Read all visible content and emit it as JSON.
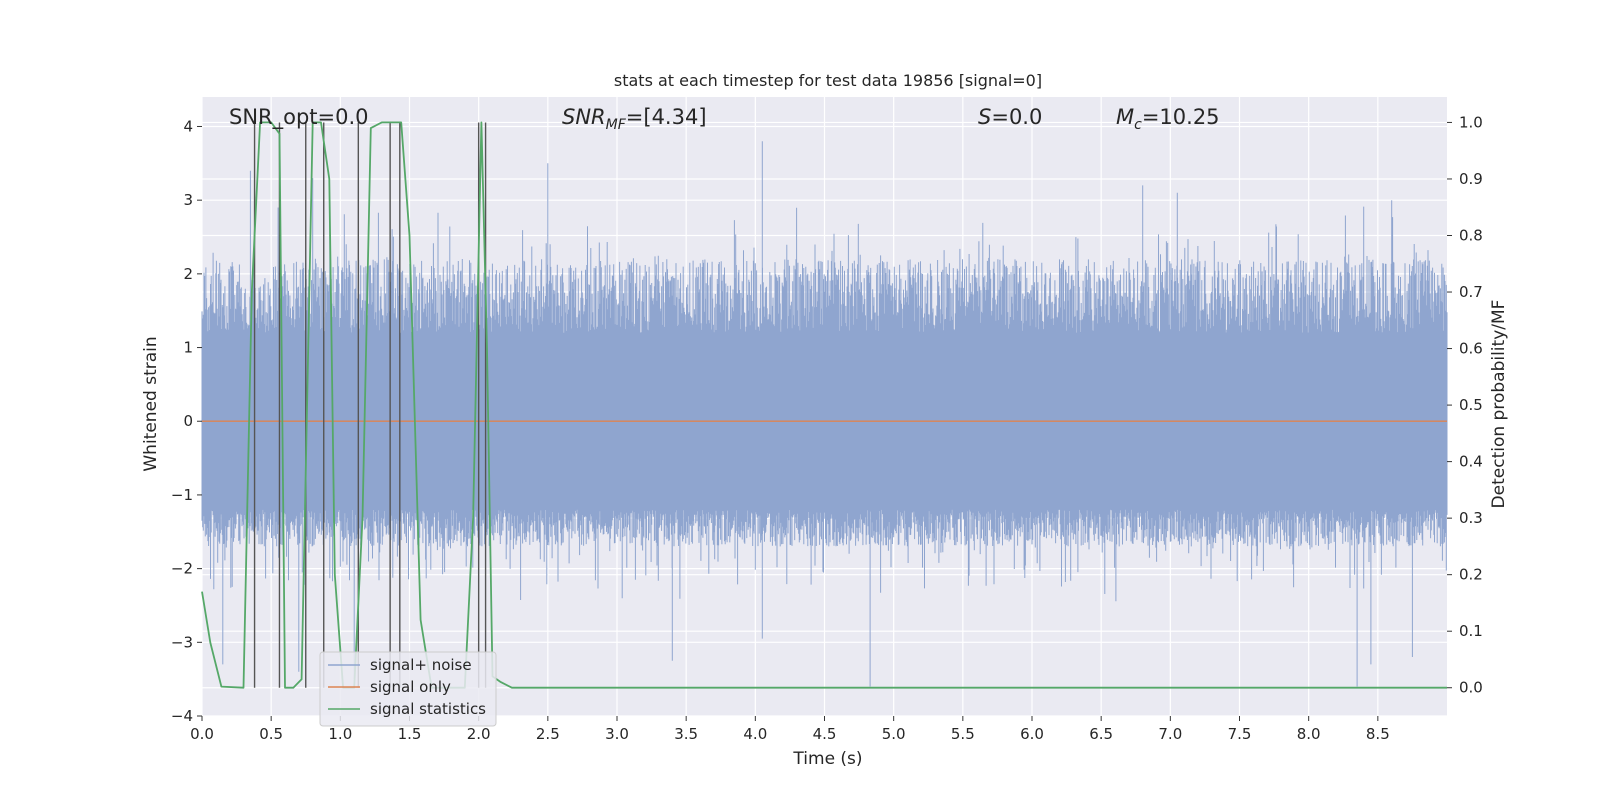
{
  "chart_data": {
    "type": "line",
    "title": "stats at each timestep for test data 19856 [signal=0]",
    "xlabel": "Time (s)",
    "ylabel": "Whitened strain",
    "y2label": "Detection probability/MF",
    "xlim": [
      0.0,
      9.0
    ],
    "ylim": [
      -4.0,
      4.4
    ],
    "y2lim": [
      -0.05,
      1.045
    ],
    "xticks": [
      0.0,
      0.5,
      1.0,
      1.5,
      2.0,
      2.5,
      3.0,
      3.5,
      4.0,
      4.5,
      5.0,
      5.5,
      6.0,
      6.5,
      7.0,
      7.5,
      8.0,
      8.5
    ],
    "xtick_labels": [
      "0.0",
      "0.5",
      "1.0",
      "1.5",
      "2.0",
      "2.5",
      "3.0",
      "3.5",
      "4.0",
      "4.5",
      "5.0",
      "5.5",
      "6.0",
      "6.5",
      "7.0",
      "7.5",
      "8.0",
      "8.5"
    ],
    "yticks": [
      -4,
      -3,
      -2,
      -1,
      0,
      1,
      2,
      3,
      4
    ],
    "ytick_labels": [
      "−4",
      "−3",
      "−2",
      "−1",
      "0",
      "1",
      "2",
      "3",
      "4"
    ],
    "y2ticks": [
      0.0,
      0.1,
      0.2,
      0.3,
      0.4,
      0.5,
      0.6,
      0.7,
      0.8,
      0.9,
      1.0
    ],
    "y2tick_labels": [
      "0.0",
      "0.1",
      "0.2",
      "0.3",
      "0.4",
      "0.5",
      "0.6",
      "0.7",
      "0.8",
      "0.9",
      "1.0"
    ],
    "grid": true,
    "legend_position": "lower-left",
    "annotations": {
      "snr_opt": "SNR_opt=0.0",
      "snr_mf_base": "SNR",
      "snr_mf_sub": "MF",
      "snr_mf_val": "=[4.34]",
      "s_base": "S",
      "s_val": "=0.0",
      "mc_base": "M",
      "mc_sub": "c",
      "mc_val": "=10.25"
    },
    "series": [
      {
        "name": "signal+ noise",
        "color": "#8fa5cf",
        "axis": "left",
        "style": "dense noise",
        "amplitude_typical": [
          -2.0,
          2.2
        ],
        "spikes": [
          [
            0.35,
            3.4
          ],
          [
            0.55,
            2.9
          ],
          [
            0.8,
            3.3
          ],
          [
            2.5,
            3.5
          ],
          [
            4.05,
            3.8
          ],
          [
            6.8,
            3.2
          ],
          [
            7.05,
            3.1
          ],
          [
            8.6,
            3.0
          ],
          [
            0.15,
            -3.3
          ],
          [
            3.4,
            -3.25
          ],
          [
            4.05,
            -2.95
          ],
          [
            4.83,
            -3.6
          ],
          [
            8.35,
            -3.6
          ],
          [
            8.45,
            -3.3
          ],
          [
            8.75,
            -3.2
          ],
          [
            0.7,
            -3.4
          ],
          [
            1.1,
            -3.5
          ]
        ]
      },
      {
        "name": "signal only",
        "color": "#dd8452",
        "axis": "left",
        "x": [
          0.0,
          9.0
        ],
        "y": [
          0.0,
          0.0
        ]
      },
      {
        "name": "signal statistics",
        "color": "#55a868",
        "axis": "right",
        "x": [
          0.0,
          0.06,
          0.14,
          0.3,
          0.36,
          0.42,
          0.5,
          0.56,
          0.6,
          0.66,
          0.72,
          0.8,
          0.86,
          0.92,
          0.96,
          1.02,
          1.1,
          1.16,
          1.22,
          1.3,
          1.44,
          1.5,
          1.58,
          1.66,
          1.9,
          1.96,
          2.02,
          2.06,
          2.1,
          2.16,
          2.24,
          2.4,
          9.0
        ],
        "y": [
          0.17,
          0.08,
          0.002,
          0.0,
          0.7,
          1.0,
          1.0,
          0.98,
          0.0,
          0.0,
          0.015,
          1.0,
          1.0,
          0.9,
          0.2,
          0.0,
          0.0,
          0.3,
          0.99,
          1.0,
          1.0,
          0.8,
          0.12,
          0.0,
          0.0,
          0.3,
          1.0,
          0.6,
          0.02,
          0.01,
          0.0,
          0.0,
          0.0
        ]
      }
    ],
    "vertical_markers": {
      "color": "#555555",
      "x": [
        0.38,
        0.56,
        0.75,
        0.88,
        1.13,
        1.36,
        1.43,
        2.0,
        2.05
      ]
    }
  }
}
